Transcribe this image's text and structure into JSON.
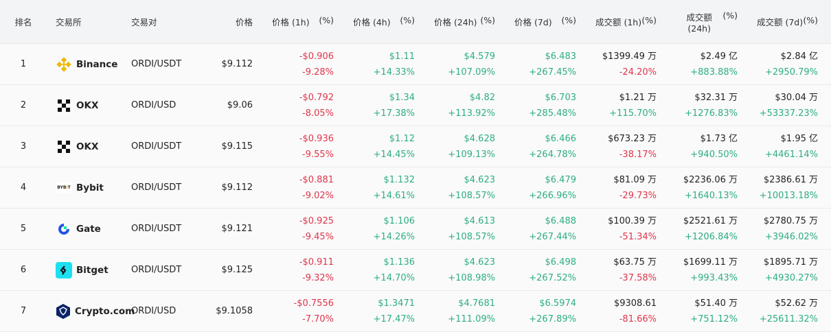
{
  "colors": {
    "positive": "#2ead84",
    "negative": "#e0354a",
    "header_bg": "#f2f4f6"
  },
  "headers": {
    "rank": "排名",
    "exchange": "交易所",
    "pair": "交易对",
    "price": "价格",
    "cols": [
      {
        "label": "价格 (1h)",
        "pct": "(%)"
      },
      {
        "label": "价格 (4h)",
        "pct": "(%)"
      },
      {
        "label": "价格 (24h)",
        "pct": "(%)"
      },
      {
        "label": "价格 (7d)",
        "pct": "(%)"
      },
      {
        "label": "成交额 (1h)",
        "pct": "(%)"
      },
      {
        "label": "成交额 (24h)",
        "pct": "(%)"
      },
      {
        "label": "成交额 (7d)",
        "pct": "(%)"
      }
    ]
  },
  "rows": [
    {
      "rank": "1",
      "exchange": "Binance",
      "logo": "binance-logo-icon",
      "pair": "ORDI/USDT",
      "price": "$9.112",
      "cells": [
        [
          "-$0.906",
          "-9.28%"
        ],
        [
          "$1.11",
          "+14.33%"
        ],
        [
          "$4.579",
          "+107.09%"
        ],
        [
          "$6.483",
          "+267.45%"
        ],
        [
          "$1399.49 万",
          "-24.20%"
        ],
        [
          "$2.49 亿",
          "+883.88%"
        ],
        [
          "$2.84 亿",
          "+2950.79%"
        ]
      ]
    },
    {
      "rank": "2",
      "exchange": "OKX",
      "logo": "okx-logo-icon",
      "pair": "ORDI/USD",
      "price": "$9.06",
      "cells": [
        [
          "-$0.792",
          "-8.05%"
        ],
        [
          "$1.34",
          "+17.38%"
        ],
        [
          "$4.82",
          "+113.92%"
        ],
        [
          "$6.703",
          "+285.48%"
        ],
        [
          "$1.21 万",
          "+115.70%"
        ],
        [
          "$32.31 万",
          "+1276.83%"
        ],
        [
          "$30.04 万",
          "+53337.23%"
        ]
      ]
    },
    {
      "rank": "3",
      "exchange": "OKX",
      "logo": "okx-logo-icon",
      "pair": "ORDI/USDT",
      "price": "$9.115",
      "cells": [
        [
          "-$0.936",
          "-9.55%"
        ],
        [
          "$1.12",
          "+14.45%"
        ],
        [
          "$4.628",
          "+109.13%"
        ],
        [
          "$6.466",
          "+264.78%"
        ],
        [
          "$673.23 万",
          "-38.17%"
        ],
        [
          "$1.73 亿",
          "+940.50%"
        ],
        [
          "$1.95 亿",
          "+4461.14%"
        ]
      ]
    },
    {
      "rank": "4",
      "exchange": "Bybit",
      "logo": "bybit-logo-icon",
      "pair": "ORDI/USDT",
      "price": "$9.112",
      "cells": [
        [
          "-$0.881",
          "-9.02%"
        ],
        [
          "$1.132",
          "+14.61%"
        ],
        [
          "$4.623",
          "+108.57%"
        ],
        [
          "$6.479",
          "+266.96%"
        ],
        [
          "$81.09 万",
          "-29.73%"
        ],
        [
          "$2236.06 万",
          "+1640.13%"
        ],
        [
          "$2386.61 万",
          "+10013.18%"
        ]
      ]
    },
    {
      "rank": "5",
      "exchange": "Gate",
      "logo": "gate-logo-icon",
      "pair": "ORDI/USDT",
      "price": "$9.121",
      "cells": [
        [
          "-$0.925",
          "-9.45%"
        ],
        [
          "$1.106",
          "+14.26%"
        ],
        [
          "$4.613",
          "+108.57%"
        ],
        [
          "$6.488",
          "+267.44%"
        ],
        [
          "$100.39 万",
          "-51.34%"
        ],
        [
          "$2521.61 万",
          "+1206.84%"
        ],
        [
          "$2780.75 万",
          "+3946.02%"
        ]
      ]
    },
    {
      "rank": "6",
      "exchange": "Bitget",
      "logo": "bitget-logo-icon",
      "pair": "ORDI/USDT",
      "price": "$9.125",
      "cells": [
        [
          "-$0.911",
          "-9.32%"
        ],
        [
          "$1.136",
          "+14.70%"
        ],
        [
          "$4.623",
          "+108.98%"
        ],
        [
          "$6.498",
          "+267.52%"
        ],
        [
          "$63.75 万",
          "-37.58%"
        ],
        [
          "$1699.11 万",
          "+993.43%"
        ],
        [
          "$1895.71 万",
          "+4930.27%"
        ]
      ]
    },
    {
      "rank": "7",
      "exchange": "Crypto.com",
      "logo": "cryptocom-logo-icon",
      "pair": "ORDI/USD",
      "price": "$9.1058",
      "cells": [
        [
          "-$0.7556",
          "-7.70%"
        ],
        [
          "$1.3471",
          "+17.47%"
        ],
        [
          "$4.7681",
          "+111.09%"
        ],
        [
          "$6.5974",
          "+267.89%"
        ],
        [
          "$9308.61",
          "-81.66%"
        ],
        [
          "$51.40 万",
          "+751.12%"
        ],
        [
          "$52.62 万",
          "+25611.32%"
        ]
      ]
    }
  ]
}
